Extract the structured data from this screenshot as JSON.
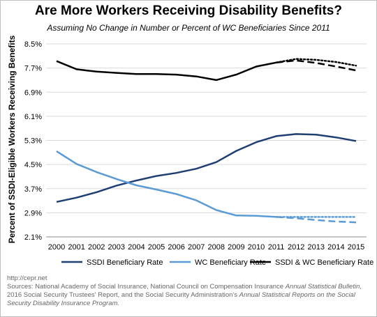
{
  "title": "Are More Workers Receiving Disability Benefits?",
  "subtitle": "Assuming No Change  in Number or Percent of WC Beneficiaries Since 2011",
  "footer": {
    "source_url": "http://cepr.net",
    "sources_line1_prefix": "Sources: National Academy of Social Insurance, National Council on Compensation Insurance ",
    "sources_line1_italic": "Annual Statistical Bulletin,",
    "sources_line2_prefix": "2016 Social Security Trustees' Report, and the Social Security Administration's ",
    "sources_line2_italic": "Annual Statistical Reports on the Social",
    "sources_line3_italic": "Security Disability Insurance Program."
  },
  "chart_data": {
    "type": "line",
    "ylabel": "Percent of SSDI-Eligible Workers Receiving Benefits",
    "xlabel": "",
    "ylim": [
      2.1,
      8.5
    ],
    "yticks": [
      "8.5%",
      "7.7%",
      "6.9%",
      "6.1%",
      "5.3%",
      "4.5%",
      "3.7%",
      "2.9%",
      "2.1%"
    ],
    "ytick_values": [
      8.5,
      7.7,
      6.9,
      6.1,
      5.3,
      4.5,
      3.7,
      2.9,
      2.1
    ],
    "x": [
      "2000",
      "2001",
      "2002",
      "2003",
      "2004",
      "2005",
      "2006",
      "2007",
      "2008",
      "2009",
      "2010",
      "2011",
      "2012",
      "2013",
      "2014",
      "2015"
    ],
    "grid": "horizontal",
    "legend_position": "bottom",
    "series": [
      {
        "name": "SSDI Beneficiary Rate",
        "color": "#1f3f73",
        "style": "solid",
        "values": [
          3.26,
          3.4,
          3.58,
          3.8,
          3.97,
          4.12,
          4.22,
          4.36,
          4.58,
          4.95,
          5.24,
          5.44,
          5.51,
          5.49,
          5.4,
          5.28
        ]
      },
      {
        "name": "WC Beneficiary Rate",
        "color": "#5b9bd5",
        "style": "solid",
        "values": [
          4.94,
          4.52,
          4.25,
          4.02,
          3.81,
          3.67,
          3.52,
          3.31,
          2.99,
          2.81,
          2.8,
          2.76,
          null,
          null,
          null,
          null
        ]
      },
      {
        "name": "SSDI & WC Beneficiary Rate",
        "color": "#000000",
        "style": "solid",
        "values": [
          7.93,
          7.66,
          7.58,
          7.54,
          7.5,
          7.5,
          7.48,
          7.42,
          7.3,
          7.48,
          7.75,
          7.88,
          null,
          null,
          null,
          null
        ]
      },
      {
        "name": "",
        "color": "#5b9bd5",
        "style": "dashed",
        "values": [
          null,
          null,
          null,
          null,
          null,
          null,
          null,
          null,
          null,
          null,
          null,
          2.76,
          2.72,
          2.66,
          2.61,
          2.58
        ]
      },
      {
        "name": "",
        "color": "#5b9bd5",
        "style": "dotted",
        "values": [
          null,
          null,
          null,
          null,
          null,
          null,
          null,
          null,
          null,
          null,
          null,
          2.76,
          2.76,
          2.76,
          2.76,
          2.76
        ]
      },
      {
        "name": "",
        "color": "#000000",
        "style": "dashed",
        "values": [
          null,
          null,
          null,
          null,
          null,
          null,
          null,
          null,
          null,
          null,
          null,
          7.88,
          7.95,
          7.87,
          7.75,
          7.62
        ]
      },
      {
        "name": "",
        "color": "#000000",
        "style": "dotted",
        "values": [
          null,
          null,
          null,
          null,
          null,
          null,
          null,
          null,
          null,
          null,
          null,
          7.88,
          8.0,
          7.97,
          7.9,
          7.78
        ]
      }
    ]
  }
}
